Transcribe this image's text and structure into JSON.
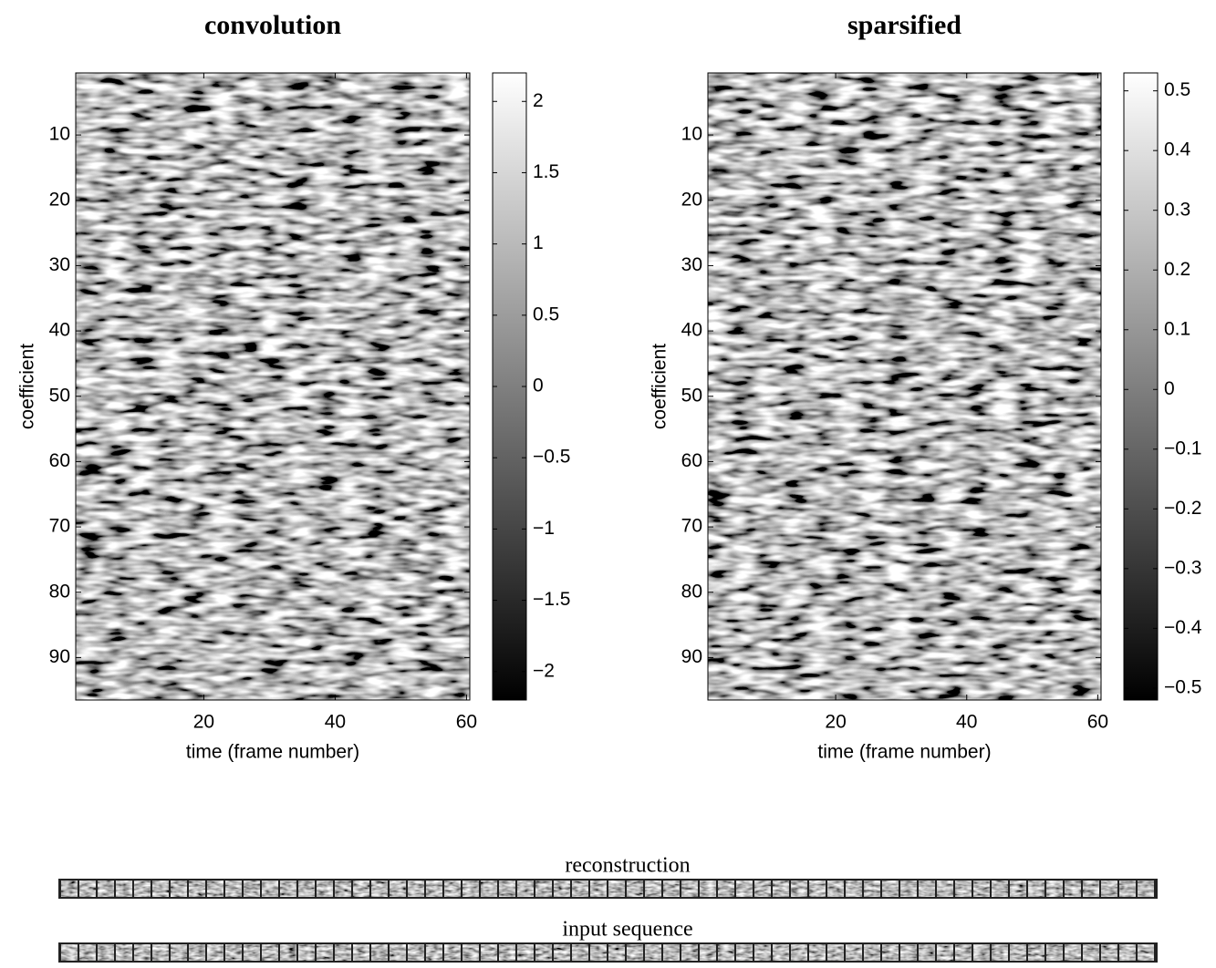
{
  "chart_data": [
    {
      "type": "heatmap",
      "title": "convolution",
      "xlabel": "time (frame number)",
      "ylabel": "coefficient",
      "xlim": [
        0.5,
        60.5
      ],
      "ylim": [
        96.5,
        0.5
      ],
      "xticks": [
        20,
        40,
        60
      ],
      "yticks": [
        10,
        20,
        30,
        40,
        50,
        60,
        70,
        80,
        90
      ],
      "colormap": "gray",
      "clim": [
        -2.2,
        2.2
      ],
      "cticks": [
        2,
        1.5,
        1,
        0.5,
        0,
        {
          "value": -0.5,
          "label": "−0.5"
        },
        {
          "value": -1,
          "label": "−1"
        },
        {
          "value": -1.5,
          "label": "−1.5"
        },
        {
          "value": -2,
          "label": "−2"
        }
      ]
    },
    {
      "type": "heatmap",
      "title": "sparsified",
      "xlabel": "time (frame number)",
      "ylabel": "coefficient",
      "xlim": [
        0.5,
        60.5
      ],
      "ylim": [
        96.5,
        0.5
      ],
      "xticks": [
        20,
        40,
        60
      ],
      "yticks": [
        10,
        20,
        30,
        40,
        50,
        60,
        70,
        80,
        90
      ],
      "colormap": "gray",
      "clim": [
        -0.52,
        0.53
      ],
      "cticks": [
        0.5,
        0.4,
        0.3,
        0.2,
        0.1,
        0,
        {
          "value": -0.1,
          "label": "−0.1"
        },
        {
          "value": -0.2,
          "label": "−0.2"
        },
        {
          "value": -0.3,
          "label": "−0.3"
        },
        {
          "value": -0.4,
          "label": "−0.4"
        },
        {
          "value": -0.5,
          "label": "−0.5"
        }
      ]
    }
  ],
  "image_strips": [
    {
      "label": "reconstruction"
    },
    {
      "label": "input sequence"
    }
  ]
}
